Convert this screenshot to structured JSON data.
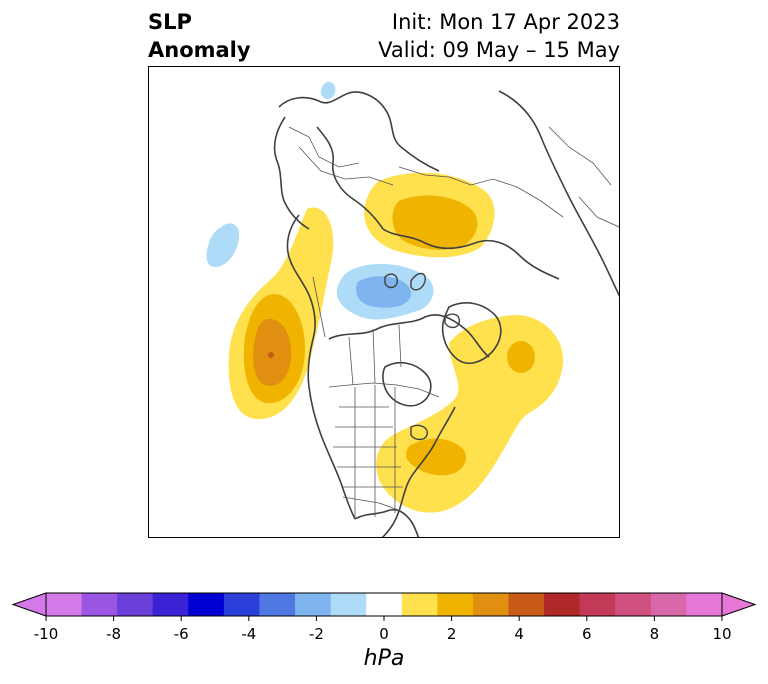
{
  "title": {
    "left_line1": "SLP",
    "left_line2": "Anomaly",
    "right_line1": "Init: Mon 17 Apr 2023",
    "right_line2": "Valid: 09 May – 15 May"
  },
  "colorbar": {
    "units": "hPa",
    "ticks": [
      "-10",
      "-8",
      "-6",
      "-4",
      "-2",
      "0",
      "2",
      "4",
      "6",
      "8",
      "10"
    ],
    "colors": [
      "#d47ae8",
      "#9b55e3",
      "#6a3ed9",
      "#3a22d6",
      "#0000d4",
      "#2a3ed9",
      "#4f78e3",
      "#7eb4f0",
      "#aedcf8",
      "#ffffff",
      "#ffe04d",
      "#f0b400",
      "#e08f10",
      "#c85a18",
      "#b02828",
      "#c23a58",
      "#d05080",
      "#d868aa",
      "#e878d8"
    ],
    "under_color": "#d47ae8",
    "over_color": "#e878d8"
  },
  "map": {
    "projection": "north-polar-stereographic",
    "field": "sea-level-pressure-anomaly"
  }
}
